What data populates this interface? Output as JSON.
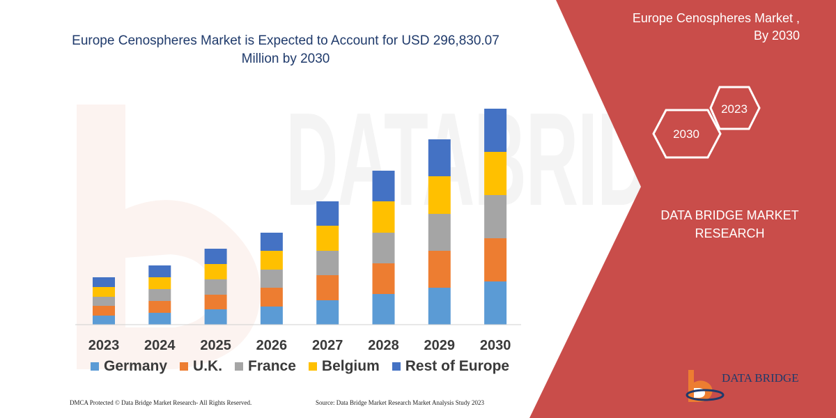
{
  "chart_data": {
    "type": "bar",
    "stacked": true,
    "title": "Europe Cenospheres Market  is Expected to Account for USD 296,830.07 Million by 2030",
    "categories": [
      "2023",
      "2024",
      "2025",
      "2026",
      "2027",
      "2028",
      "2029",
      "2030"
    ],
    "series": [
      {
        "name": "Germany",
        "color": "#5b9bd5",
        "values": [
          13,
          17,
          22,
          26,
          35,
          44,
          53,
          62
        ]
      },
      {
        "name": "U.K.",
        "color": "#ed7d31",
        "values": [
          14,
          17,
          21,
          27,
          36,
          44,
          53,
          62
        ]
      },
      {
        "name": "France",
        "color": "#a5a5a5",
        "values": [
          13,
          17,
          22,
          26,
          35,
          44,
          53,
          62
        ]
      },
      {
        "name": "Belgium",
        "color": "#ffc000",
        "values": [
          14,
          17,
          22,
          27,
          36,
          45,
          54,
          62
        ]
      },
      {
        "name": "Rest of Europe",
        "color": "#4472c4",
        "values": [
          14,
          17,
          22,
          26,
          35,
          44,
          53,
          62
        ]
      }
    ],
    "ylim": [
      0,
      320
    ],
    "grid": false,
    "legend": "bottom"
  },
  "panel": {
    "title": "Europe Cenospheres Market ,\nBy 2030",
    "hex_front": "2030",
    "hex_back": "2023",
    "company": "DATA BRIDGE MARKET RESEARCH",
    "color": "#c94d4a"
  },
  "footer": {
    "left": "DMCA Protected © Data Bridge Market Research- All Rights Reserved.",
    "right": "Source: Data Bridge Market Research Market Analysis Study 2023"
  },
  "brand": {
    "name": "DATA BRIDGE"
  }
}
